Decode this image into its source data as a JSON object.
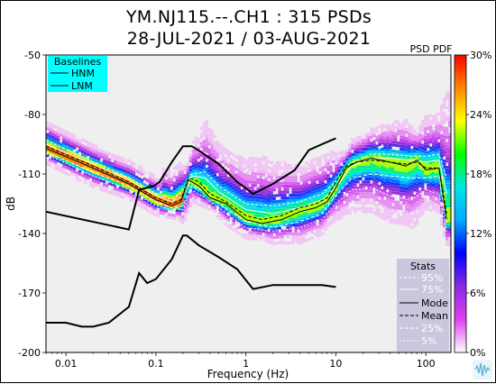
{
  "title_line1": "YM.NJ115.--.CH1 : 315 PSDs",
  "title_line2": "28-JUL-2021 / 03-AUG-2021",
  "colorbar_title": "PSD PDF",
  "chart_data": {
    "type": "heatmap",
    "xlabel": "Frequency (Hz)",
    "ylabel": "dB",
    "xscale": "log",
    "xlim": [
      0.006,
      190
    ],
    "ylim": [
      -200,
      -50
    ],
    "xticks": [
      {
        "value": 0.01,
        "label": "0.01"
      },
      {
        "value": 0.1,
        "label": "0.1"
      },
      {
        "value": 1,
        "label": "1"
      },
      {
        "value": 10,
        "label": "10"
      },
      {
        "value": 100,
        "label": "100"
      }
    ],
    "yticks": [
      {
        "value": -50,
        "label": "-50"
      },
      {
        "value": -80,
        "label": "-80"
      },
      {
        "value": -110,
        "label": "-110"
      },
      {
        "value": -140,
        "label": "-140"
      },
      {
        "value": -170,
        "label": "-170"
      },
      {
        "value": -200,
        "label": "-200"
      }
    ],
    "background_color": "#efefef",
    "colorbar": {
      "ticks": [
        "0%",
        "6%",
        "12%",
        "18%",
        "24%",
        "30%"
      ],
      "range": [
        0,
        30
      ],
      "colors": [
        "#ffffff",
        "#e040f0",
        "#8a2be2",
        "#0000ff",
        "#00aaff",
        "#00e5e5",
        "#00ff00",
        "#ffff00",
        "#ff8800",
        "#ff0000"
      ]
    },
    "baselines": {
      "title": "Baselines",
      "box_color": "#00ffff",
      "entries": [
        "HNM",
        "LNM"
      ],
      "HNM": {
        "x": [
          0.006,
          0.05,
          0.065,
          0.095,
          0.11,
          0.15,
          0.2,
          0.25,
          0.32,
          0.5,
          0.8,
          1.2,
          2,
          3.5,
          5,
          7,
          10
        ],
        "y": [
          -129,
          -138,
          -118,
          -116,
          -114,
          -104,
          -96,
          -96,
          -99,
          -105,
          -114,
          -120,
          -115,
          -108,
          -98,
          -95,
          -92
        ]
      },
      "LNM": {
        "x": [
          0.006,
          0.01,
          0.015,
          0.02,
          0.03,
          0.05,
          0.065,
          0.08,
          0.1,
          0.15,
          0.2,
          0.22,
          0.3,
          0.5,
          0.8,
          1.2,
          2,
          4,
          7,
          10
        ],
        "y": [
          -185,
          -185,
          -187,
          -187,
          -185,
          -177,
          -160,
          -165,
          -163,
          -153,
          -141,
          -141,
          -146,
          -152,
          -158,
          -168,
          -166,
          -166,
          -166,
          -167
        ]
      }
    },
    "stats": {
      "title": "Stats",
      "legend": [
        "95%",
        "75%",
        "Mode",
        "Mean",
        "25%",
        "5%"
      ],
      "mode": {
        "x": [
          0.006,
          0.02,
          0.05,
          0.1,
          0.15,
          0.19,
          0.23,
          0.3,
          0.4,
          0.6,
          1,
          1.5,
          2.5,
          4,
          6,
          8,
          10,
          13,
          17,
          25,
          40,
          60,
          80,
          100,
          140,
          170
        ],
        "y": [
          -97,
          -107,
          -115,
          -123,
          -126,
          -124,
          -113,
          -116,
          -122,
          -125,
          -133,
          -135,
          -133,
          -129,
          -127,
          -124,
          -117,
          -107,
          -104,
          -102,
          -104,
          -106,
          -103,
          -108,
          -107,
          -133
        ]
      },
      "mean": {
        "x": [
          0.006,
          0.02,
          0.05,
          0.1,
          0.15,
          0.19,
          0.23,
          0.3,
          0.4,
          0.6,
          1,
          1.5,
          2.5,
          4,
          6,
          8,
          10,
          13,
          17,
          25,
          40,
          60,
          80,
          100,
          140,
          170
        ],
        "y": [
          -96,
          -106,
          -114,
          -122,
          -125,
          -123,
          -112,
          -114,
          -120,
          -124,
          -131,
          -133,
          -131,
          -127,
          -125,
          -122,
          -114,
          -106,
          -104,
          -103,
          -104,
          -105,
          -104,
          -107,
          -107,
          -130
        ]
      },
      "p95": {
        "x": [
          0.006,
          0.02,
          0.05,
          0.1,
          0.15,
          0.2,
          0.25,
          0.35,
          0.5,
          1,
          2,
          4,
          7,
          10,
          15,
          25,
          40,
          70,
          100,
          140,
          170
        ],
        "y": [
          -93,
          -104,
          -112,
          -120,
          -123,
          -119,
          -110,
          -109,
          -116,
          -125,
          -126,
          -124,
          -120,
          -114,
          -104,
          -100,
          -100,
          -101,
          -101,
          -100,
          -112
        ]
      },
      "p75": {
        "x": [
          0.006,
          0.02,
          0.05,
          0.1,
          0.15,
          0.2,
          0.25,
          0.35,
          0.5,
          1,
          2,
          4,
          7,
          10,
          15,
          25,
          40,
          70,
          100,
          140,
          170
        ],
        "y": [
          -95,
          -105,
          -113,
          -121,
          -124,
          -121,
          -111,
          -112,
          -119,
          -128,
          -130,
          -127,
          -123,
          -117,
          -106,
          -102,
          -102,
          -103,
          -104,
          -103,
          -120
        ]
      },
      "p25": {
        "x": [
          0.006,
          0.02,
          0.05,
          0.1,
          0.15,
          0.2,
          0.25,
          0.35,
          0.5,
          1,
          2,
          4,
          7,
          10,
          15,
          25,
          40,
          70,
          100,
          140,
          170
        ],
        "y": [
          -99,
          -109,
          -116,
          -124,
          -127,
          -126,
          -116,
          -119,
          -125,
          -134,
          -137,
          -134,
          -130,
          -121,
          -112,
          -110,
          -111,
          -112,
          -112,
          -111,
          -135
        ]
      },
      "p5": {
        "x": [
          0.006,
          0.02,
          0.05,
          0.1,
          0.15,
          0.2,
          0.25,
          0.35,
          0.5,
          1,
          2,
          4,
          7,
          10,
          15,
          25,
          40,
          70,
          100,
          140,
          170
        ],
        "y": [
          -100,
          -111,
          -118,
          -126,
          -128,
          -128,
          -118,
          -122,
          -127,
          -137,
          -139,
          -137,
          -133,
          -125,
          -118,
          -117,
          -121,
          -123,
          -118,
          -120,
          -139
        ]
      }
    }
  }
}
